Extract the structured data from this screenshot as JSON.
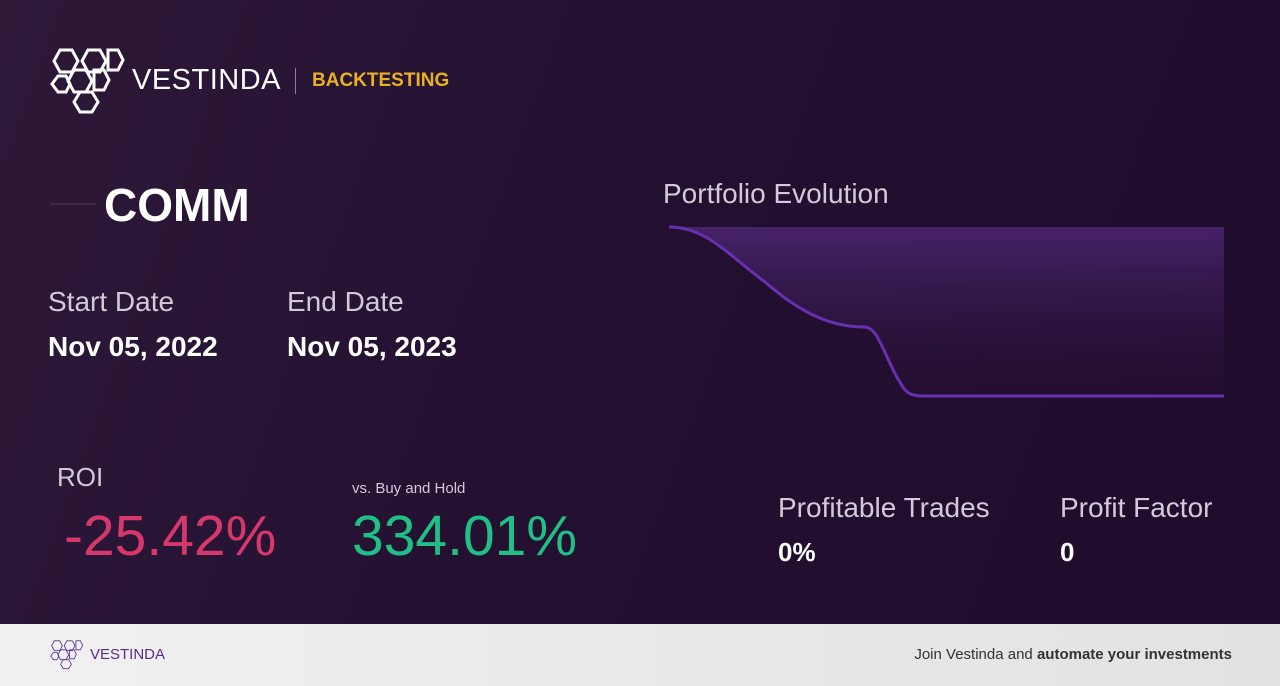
{
  "header": {
    "brand": "VESTINDA",
    "section": "BACKTESTING"
  },
  "symbol": "COMM",
  "dates": {
    "start_label": "Start Date",
    "start": "Nov 05, 2022",
    "end_label": "End Date",
    "end": "Nov 05, 2023"
  },
  "chart": {
    "title": "Portfolio Evolution"
  },
  "roi": {
    "label": "ROI",
    "value": "-25.42%",
    "compare_label": "vs. Buy and Hold",
    "compare_value": "334.01%"
  },
  "stats": [
    {
      "label": "Profitable Trades",
      "value": "0%"
    },
    {
      "label": "Profit Factor",
      "value": "0"
    }
  ],
  "footer": {
    "brand": "VESTINDA",
    "cta_plain": "Join Vestinda and ",
    "cta_bold": "automate your investments"
  }
}
